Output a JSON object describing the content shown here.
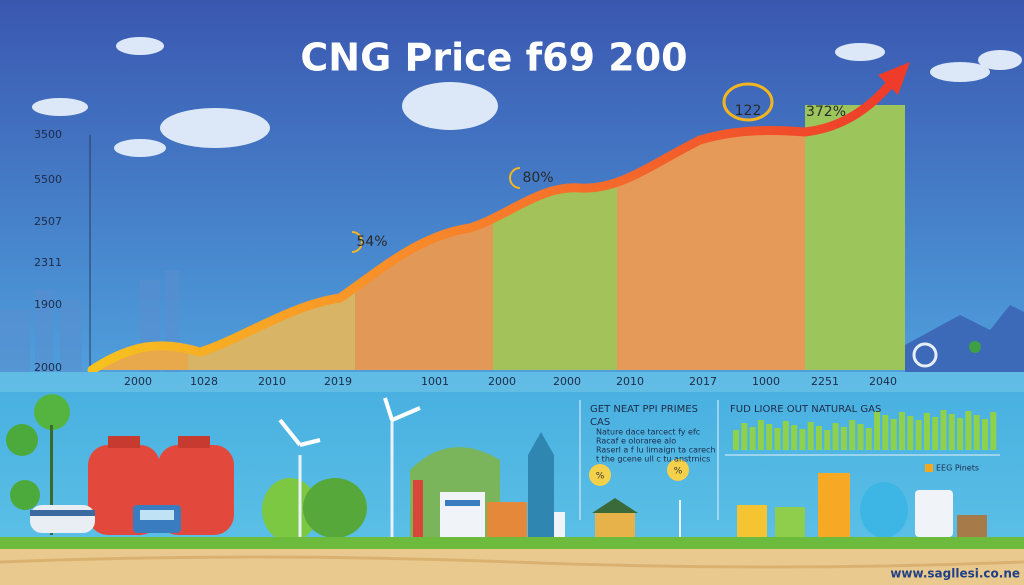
{
  "title": "CNG Price  f69 200",
  "y_axis_labels": [
    "3500",
    "5500",
    "2507",
    "2311",
    "1900",
    "2000"
  ],
  "x_axis_labels": [
    "2000",
    "1028",
    "2010",
    "2019",
    "1001",
    "2000",
    "2000",
    "2010",
    "2017",
    "1000",
    "2251",
    "2040"
  ],
  "annotations": [
    "54%",
    "80%",
    "122",
    "372%"
  ],
  "panel_left": {
    "title": "GET NEAT PPI PRIMES",
    "subtitle": "CAS",
    "bullets": [
      "Nature dace tarcect fy efc",
      "Racaf e oloraree alo",
      "Raserl a f lu limaign ta carech",
      "t the gcene ull c tu anstrnics"
    ],
    "badges": [
      "%",
      "%"
    ]
  },
  "panel_right": {
    "title": "FUD LIORE OUT NATURAL GAS",
    "legend": "EEG Pinets"
  },
  "watermark": "www.sagllesi.co.ne"
}
